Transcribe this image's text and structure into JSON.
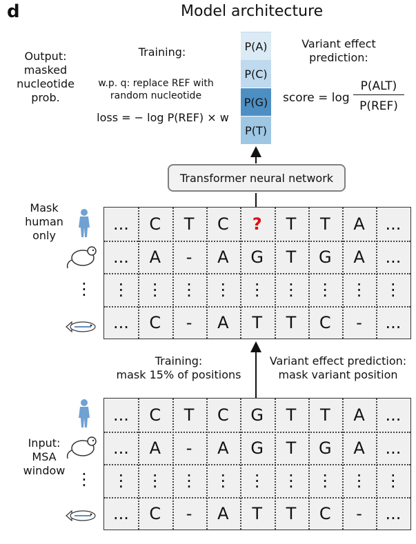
{
  "panel_label": "d",
  "title": "Model architecture",
  "output_label": "Output:\nmasked\nnucleotide\nprob.",
  "training_top": {
    "heading": "Training:",
    "desc": "w.p. q: replace REF with\nrandom nucleotide",
    "loss": "loss = − log P(REF) × w"
  },
  "probs": [
    "P(A)",
    "P(C)",
    "P(G)",
    "P(T)"
  ],
  "variant_top": {
    "heading": "Variant effect\nprediction:",
    "score_lhs": "score = log",
    "numerator": "P(ALT)",
    "denominator": "P(REF)"
  },
  "network_label": "Transformer neural network",
  "mask_label": "Mask\nhuman\nonly",
  "masked_grid": [
    [
      "...",
      "C",
      "T",
      "C",
      "?",
      "T",
      "T",
      "A",
      "..."
    ],
    [
      "...",
      "A",
      "-",
      "A",
      "G",
      "T",
      "G",
      "A",
      "..."
    ],
    [
      "⋮",
      "⋮",
      "⋮",
      "⋮",
      "⋮",
      "⋮",
      "⋮",
      "⋮",
      "⋮"
    ],
    [
      "...",
      "C",
      "-",
      "A",
      "T",
      "T",
      "C",
      "-",
      "..."
    ]
  ],
  "training_mid": "Training:\nmask 15% of positions",
  "variant_mid": "Variant effect prediction:\nmask variant position",
  "input_label": "Input:\nMSA\nwindow",
  "input_grid": [
    [
      "...",
      "C",
      "T",
      "C",
      "G",
      "T",
      "T",
      "A",
      "..."
    ],
    [
      "...",
      "A",
      "-",
      "A",
      "G",
      "T",
      "G",
      "A",
      "..."
    ],
    [
      "⋮",
      "⋮",
      "⋮",
      "⋮",
      "⋮",
      "⋮",
      "⋮",
      "⋮",
      "⋮"
    ],
    [
      "...",
      "C",
      "-",
      "A",
      "T",
      "T",
      "C",
      "-",
      "..."
    ]
  ],
  "species_icons": [
    "human-icon",
    "mouse-icon",
    "vertical-dots",
    "fish-icon"
  ],
  "colors": {
    "prob_g": "#4d8fc3",
    "prob_t": "#9ec7e4",
    "prob_c": "#bfd9ee",
    "prob_a": "#dbeaf5",
    "mask": "#e01010"
  }
}
